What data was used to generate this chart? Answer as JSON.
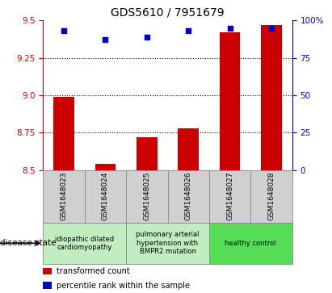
{
  "title": "GDS5610 / 7951679",
  "samples": [
    "GSM1648023",
    "GSM1648024",
    "GSM1648025",
    "GSM1648026",
    "GSM1648027",
    "GSM1648028"
  ],
  "red_values": [
    8.99,
    8.54,
    8.72,
    8.78,
    9.42,
    9.47
  ],
  "blue_values": [
    93,
    87,
    89,
    93,
    95,
    95
  ],
  "ylim_left": [
    8.5,
    9.5
  ],
  "ylim_right": [
    0,
    100
  ],
  "yticks_left": [
    8.5,
    8.75,
    9.0,
    9.25,
    9.5
  ],
  "yticks_right": [
    0,
    25,
    50,
    75,
    100
  ],
  "hlines": [
    8.75,
    9.0,
    9.25
  ],
  "disease_groups": [
    {
      "start": 0,
      "end": 1,
      "label": "idiopathic dilated\ncardiomyopathy",
      "color": "#c0eec0"
    },
    {
      "start": 2,
      "end": 3,
      "label": "pulmonary arterial\nhypertension with\nBMPR2 mutation",
      "color": "#c0eec0"
    },
    {
      "start": 4,
      "end": 5,
      "label": "healthy control",
      "color": "#55dd55"
    }
  ],
  "bar_color": "#cc0000",
  "dot_color": "#0000cc",
  "bar_width": 0.5,
  "sample_box_color": "#d0d0d0",
  "left_axis_color": "#cc0000",
  "right_axis_color": "#0000cc",
  "legend_red_label": "transformed count",
  "legend_blue_label": "percentile rank within the sample",
  "disease_state_label": "disease state",
  "plot_bg": "#ffffff"
}
